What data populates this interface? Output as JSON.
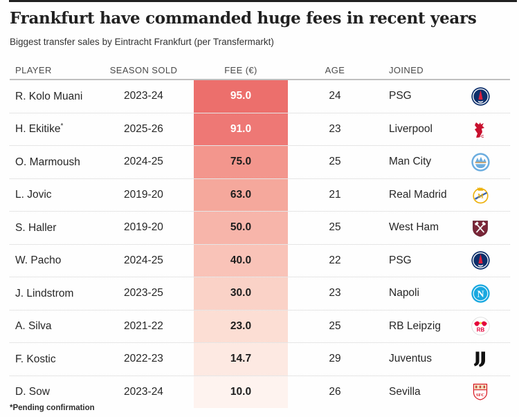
{
  "header": {
    "title": "Frankfurt have commanded huge fees in recent years",
    "subtitle": "Biggest transfer sales by Eintracht Frankfurt (per Transfermarkt)"
  },
  "table": {
    "columns": [
      "PLAYER",
      "SEASON SOLD",
      "FEE (€)",
      "AGE",
      "JOINED"
    ],
    "rows": [
      {
        "player": "R. Kolo Muani",
        "player_note": "",
        "season": "2023-24",
        "fee": "95.0",
        "age": "24",
        "joined": "PSG",
        "logo": "psg-crest-icon",
        "fee_fill": "#ec6f6c",
        "fee_text_color": "#ffffff"
      },
      {
        "player": "H. Ekitike",
        "player_note": "*",
        "season": "2025-26",
        "fee": "91.0",
        "age": "23",
        "joined": "Liverpool",
        "logo": "liverpool-crest-icon",
        "fee_fill": "#ee7875",
        "fee_text_color": "#ffffff"
      },
      {
        "player": "O. Marmoush",
        "player_note": "",
        "season": "2024-25",
        "fee": "75.0",
        "age": "25",
        "joined": "Man City",
        "logo": "man-city-crest-icon",
        "fee_fill": "#f3968d",
        "fee_text_color": "#1d1d1d"
      },
      {
        "player": "L. Jovic",
        "player_note": "",
        "season": "2019-20",
        "fee": "63.0",
        "age": "21",
        "joined": "Real Madrid",
        "logo": "real-madrid-crest-icon",
        "fee_fill": "#f5a89c",
        "fee_text_color": "#1d1d1d"
      },
      {
        "player": "S. Haller",
        "player_note": "",
        "season": "2019-20",
        "fee": "50.0",
        "age": "25",
        "joined": "West Ham",
        "logo": "west-ham-crest-icon",
        "fee_fill": "#f7b5aa",
        "fee_text_color": "#1d1d1d"
      },
      {
        "player": "W. Pacho",
        "player_note": "",
        "season": "2024-25",
        "fee": "40.0",
        "age": "22",
        "joined": "PSG",
        "logo": "psg-crest-icon",
        "fee_fill": "#f9c3b8",
        "fee_text_color": "#1d1d1d"
      },
      {
        "player": "J. Lindstrom",
        "player_note": "",
        "season": "2023-25",
        "fee": "30.0",
        "age": "23",
        "joined": "Napoli",
        "logo": "napoli-crest-icon",
        "fee_fill": "#fad2c7",
        "fee_text_color": "#1d1d1d"
      },
      {
        "player": "A. Silva",
        "player_note": "",
        "season": "2021-22",
        "fee": "23.0",
        "age": "25",
        "joined": "RB Leipzig",
        "logo": "rb-leipzig-crest-icon",
        "fee_fill": "#fcded4",
        "fee_text_color": "#1d1d1d"
      },
      {
        "player": "F. Kostic",
        "player_note": "",
        "season": "2022-23",
        "fee": "14.7",
        "age": "29",
        "joined": "Juventus",
        "logo": "juventus-crest-icon",
        "fee_fill": "#fde9e2",
        "fee_text_color": "#1d1d1d"
      },
      {
        "player": "D. Sow",
        "player_note": "",
        "season": "2023-24",
        "fee": "10.0",
        "age": "26",
        "joined": "Sevilla",
        "logo": "sevilla-crest-icon",
        "fee_fill": "#fef3ef",
        "fee_text_color": "#1d1d1d"
      }
    ]
  },
  "footnote": "*Pending confirmation",
  "colors": {
    "top_rule": "#212121",
    "header_underline": "#bfbfbf",
    "row_divider_dotted": "#cdcdcd",
    "fee_scale_high": "#ec6f6c",
    "fee_scale_low": "#fef3ef"
  },
  "chart_data": {
    "type": "table",
    "title": "Frankfurt have commanded huge fees in recent years",
    "subtitle": "Biggest transfer sales by Eintracht Frankfurt (per Transfermarkt)",
    "columns": [
      "PLAYER",
      "SEASON SOLD",
      "FEE (€)",
      "AGE",
      "JOINED"
    ],
    "rows": [
      [
        "R. Kolo Muani",
        "2023-24",
        95.0,
        24,
        "PSG"
      ],
      [
        "H. Ekitike*",
        "2025-26",
        91.0,
        23,
        "Liverpool"
      ],
      [
        "O. Marmoush",
        "2024-25",
        75.0,
        25,
        "Man City"
      ],
      [
        "L. Jovic",
        "2019-20",
        63.0,
        21,
        "Real Madrid"
      ],
      [
        "S. Haller",
        "2019-20",
        50.0,
        25,
        "West Ham"
      ],
      [
        "W. Pacho",
        "2024-25",
        40.0,
        22,
        "PSG"
      ],
      [
        "J. Lindstrom",
        "2023-25",
        30.0,
        23,
        "Napoli"
      ],
      [
        "A. Silva",
        "2021-22",
        23.0,
        25,
        "RB Leipzig"
      ],
      [
        "F. Kostic",
        "2022-23",
        14.7,
        29,
        "Juventus"
      ],
      [
        "D. Sow",
        "2023-24",
        10.0,
        26,
        "Sevilla"
      ]
    ],
    "heat_column": "FEE (€)",
    "heat_scale": {
      "min": 10.0,
      "max": 95.0,
      "low_color": "#fef3ef",
      "high_color": "#ec6f6c"
    },
    "footnote": "*Pending confirmation"
  }
}
